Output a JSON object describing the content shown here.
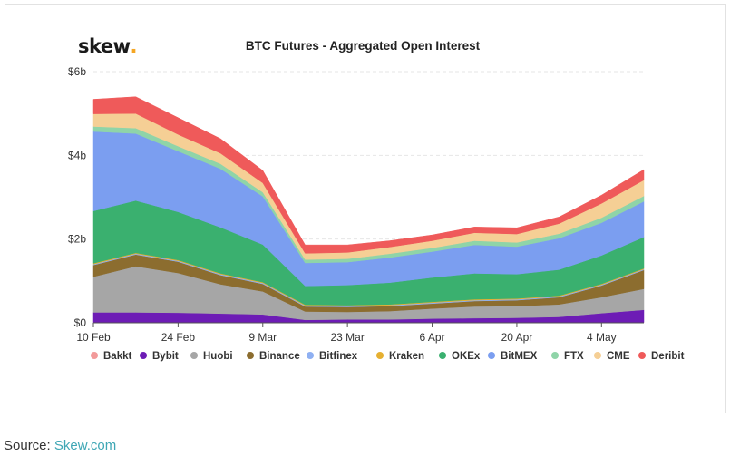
{
  "logo": {
    "text": "skew",
    "dot": "."
  },
  "source": {
    "label": "Source:",
    "link_text": "Skew.com"
  },
  "chart_data": {
    "type": "area",
    "stacked": true,
    "title": "BTC Futures - Aggregated Open Interest",
    "xlabel": "",
    "ylabel": "",
    "ylim": [
      0,
      6
    ],
    "y_unit": "$b",
    "y_ticks": [
      {
        "value": 0,
        "label": "$0"
      },
      {
        "value": 2,
        "label": "$2b"
      },
      {
        "value": 4,
        "label": "$4b"
      },
      {
        "value": 6,
        "label": "$6b"
      }
    ],
    "x_ticks": [
      {
        "index": 0,
        "label": "10 Feb"
      },
      {
        "index": 2,
        "label": "24 Feb"
      },
      {
        "index": 4,
        "label": "9 Mar"
      },
      {
        "index": 6,
        "label": "23 Mar"
      },
      {
        "index": 8,
        "label": "6 Apr"
      },
      {
        "index": 10,
        "label": "20 Apr"
      },
      {
        "index": 12,
        "label": "4 May"
      }
    ],
    "x": [
      "10 Feb",
      "17 Feb",
      "24 Feb",
      "2 Mar",
      "9 Mar",
      "16 Mar",
      "23 Mar",
      "30 Mar",
      "6 Apr",
      "13 Apr",
      "20 Apr",
      "27 Apr",
      "4 May",
      "11 May"
    ],
    "legend_position": "bottom",
    "series": [
      {
        "name": "Bakkt",
        "color": "#f29a9a",
        "values": [
          0.0,
          0.0,
          0.0,
          0.0,
          0.0,
          0.0,
          0.0,
          0.0,
          0.0,
          0.0,
          0.0,
          0.0,
          0.01,
          0.01
        ]
      },
      {
        "name": "Bybit",
        "color": "#6d1cb5",
        "values": [
          0.25,
          0.25,
          0.24,
          0.22,
          0.2,
          0.07,
          0.08,
          0.08,
          0.1,
          0.11,
          0.12,
          0.14,
          0.22,
          0.3
        ]
      },
      {
        "name": "Huobi",
        "color": "#a6a6a6",
        "values": [
          0.85,
          1.1,
          0.95,
          0.7,
          0.55,
          0.2,
          0.18,
          0.2,
          0.24,
          0.28,
          0.28,
          0.3,
          0.38,
          0.5
        ]
      },
      {
        "name": "Binance",
        "color": "#8c6d2f",
        "values": [
          0.28,
          0.28,
          0.27,
          0.22,
          0.18,
          0.12,
          0.12,
          0.12,
          0.12,
          0.13,
          0.14,
          0.17,
          0.28,
          0.45
        ]
      },
      {
        "name": "Bitfinex",
        "color": "#8fb0f2",
        "values": [
          0.02,
          0.02,
          0.02,
          0.02,
          0.02,
          0.02,
          0.02,
          0.02,
          0.02,
          0.02,
          0.02,
          0.02,
          0.02,
          0.02
        ]
      },
      {
        "name": "Kraken",
        "color": "#e6b031",
        "values": [
          0.02,
          0.02,
          0.02,
          0.02,
          0.02,
          0.02,
          0.02,
          0.02,
          0.02,
          0.02,
          0.02,
          0.02,
          0.02,
          0.02
        ]
      },
      {
        "name": "OKEx",
        "color": "#3ab06f",
        "values": [
          1.25,
          1.25,
          1.15,
          1.1,
          0.9,
          0.45,
          0.48,
          0.52,
          0.58,
          0.62,
          0.58,
          0.62,
          0.68,
          0.75
        ]
      },
      {
        "name": "BitMEX",
        "color": "#7b9ef0",
        "values": [
          1.9,
          1.6,
          1.45,
          1.4,
          1.15,
          0.55,
          0.55,
          0.6,
          0.62,
          0.68,
          0.66,
          0.75,
          0.78,
          0.85
        ]
      },
      {
        "name": "FTX",
        "color": "#8fd4a8",
        "values": [
          0.12,
          0.13,
          0.12,
          0.12,
          0.1,
          0.08,
          0.08,
          0.09,
          0.09,
          0.1,
          0.1,
          0.11,
          0.12,
          0.13
        ]
      },
      {
        "name": "CME",
        "color": "#f5cf95",
        "values": [
          0.3,
          0.35,
          0.28,
          0.25,
          0.22,
          0.15,
          0.15,
          0.16,
          0.17,
          0.19,
          0.2,
          0.24,
          0.34,
          0.38
        ]
      },
      {
        "name": "Deribit",
        "color": "#ef5a5a",
        "values": [
          0.35,
          0.4,
          0.4,
          0.35,
          0.3,
          0.2,
          0.18,
          0.15,
          0.14,
          0.14,
          0.15,
          0.16,
          0.2,
          0.25
        ]
      }
    ]
  }
}
